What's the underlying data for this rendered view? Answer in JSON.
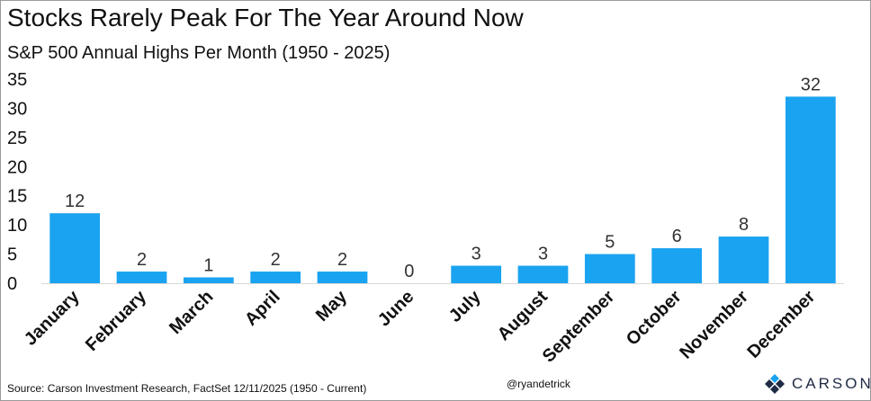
{
  "header": {
    "title": "Stocks Rarely Peak For The Year Around Now",
    "subtitle": "S&P 500 Annual Highs Per Month (1950 - 2025)"
  },
  "footer": {
    "source": "Source: Carson Investment Research, FactSet 12/11/2025 (1950 - Current)",
    "handle": "@ryandetrick",
    "logo_text": "CARSON"
  },
  "colors": {
    "bar": "#1AA3F0",
    "text": "#111111",
    "logo": "#1f2a44"
  },
  "chart_data": {
    "type": "bar",
    "title": "Stocks Rarely Peak For The Year Around Now",
    "subtitle": "S&P 500 Annual Highs Per Month (1950 - 2025)",
    "xlabel": "",
    "ylabel": "",
    "categories": [
      "January",
      "February",
      "March",
      "April",
      "May",
      "June",
      "July",
      "August",
      "September",
      "October",
      "November",
      "December"
    ],
    "values": [
      12,
      2,
      1,
      2,
      2,
      0,
      3,
      3,
      5,
      6,
      8,
      32
    ],
    "ylim": [
      0,
      35
    ],
    "yticks": [
      0,
      5,
      10,
      15,
      20,
      25,
      30,
      35
    ],
    "grid": false,
    "data_labels": true,
    "x_tick_rotation_deg": -45
  }
}
